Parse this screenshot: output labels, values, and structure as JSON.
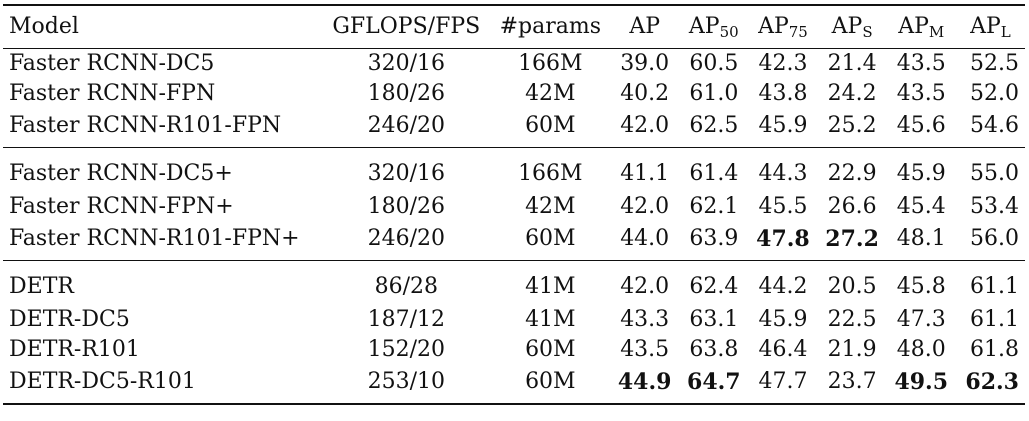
{
  "table": {
    "headers": {
      "model": "Model",
      "gflops_fps": "GFLOPS/FPS",
      "params": "#params",
      "ap": "AP",
      "ap_sub_labels": [
        "50",
        "75",
        "S",
        "M",
        "L"
      ]
    },
    "groups": [
      [
        {
          "model": "Faster RCNN-DC5",
          "gflops_fps": "320/16",
          "params": "166M",
          "ap": "39.0",
          "ap50": "60.5",
          "ap75": "42.3",
          "aps": "21.4",
          "apm": "43.5",
          "apl": "52.5"
        },
        {
          "model": "Faster RCNN-FPN",
          "gflops_fps": "180/26",
          "params": "42M",
          "ap": "40.2",
          "ap50": "61.0",
          "ap75": "43.8",
          "aps": "24.2",
          "apm": "43.5",
          "apl": "52.0"
        },
        {
          "model": "Faster RCNN-R101-FPN",
          "gflops_fps": "246/20",
          "params": "60M",
          "ap": "42.0",
          "ap50": "62.5",
          "ap75": "45.9",
          "aps": "25.2",
          "apm": "45.6",
          "apl": "54.6"
        }
      ],
      [
        {
          "model": "Faster RCNN-DC5+",
          "gflops_fps": "320/16",
          "params": "166M",
          "ap": "41.1",
          "ap50": "61.4",
          "ap75": "44.3",
          "aps": "22.9",
          "apm": "45.9",
          "apl": "55.0"
        },
        {
          "model": "Faster RCNN-FPN+",
          "gflops_fps": "180/26",
          "params": "42M",
          "ap": "42.0",
          "ap50": "62.1",
          "ap75": "45.5",
          "aps": "26.6",
          "apm": "45.4",
          "apl": "53.4"
        },
        {
          "model": "Faster RCNN-R101-FPN+",
          "gflops_fps": "246/20",
          "params": "60M",
          "ap": "44.0",
          "ap50": "63.9",
          "ap75": "47.8",
          "aps": "27.2",
          "apm": "48.1",
          "apl": "56.0",
          "bold": [
            "ap75",
            "aps"
          ]
        }
      ],
      [
        {
          "model": "DETR",
          "gflops_fps": "86/28",
          "params": "41M",
          "ap": "42.0",
          "ap50": "62.4",
          "ap75": "44.2",
          "aps": "20.5",
          "apm": "45.8",
          "apl": "61.1"
        },
        {
          "model": "DETR-DC5",
          "gflops_fps": "187/12",
          "params": "41M",
          "ap": "43.3",
          "ap50": "63.1",
          "ap75": "45.9",
          "aps": "22.5",
          "apm": "47.3",
          "apl": "61.1"
        },
        {
          "model": "DETR-R101",
          "gflops_fps": "152/20",
          "params": "60M",
          "ap": "43.5",
          "ap50": "63.8",
          "ap75": "46.4",
          "aps": "21.9",
          "apm": "48.0",
          "apl": "61.8"
        },
        {
          "model": "DETR-DC5-R101",
          "gflops_fps": "253/10",
          "params": "60M",
          "ap": "44.9",
          "ap50": "64.7",
          "ap75": "47.7",
          "aps": "23.7",
          "apm": "49.5",
          "apl": "62.3",
          "bold": [
            "ap",
            "ap50",
            "apm",
            "apl"
          ]
        }
      ]
    ]
  }
}
